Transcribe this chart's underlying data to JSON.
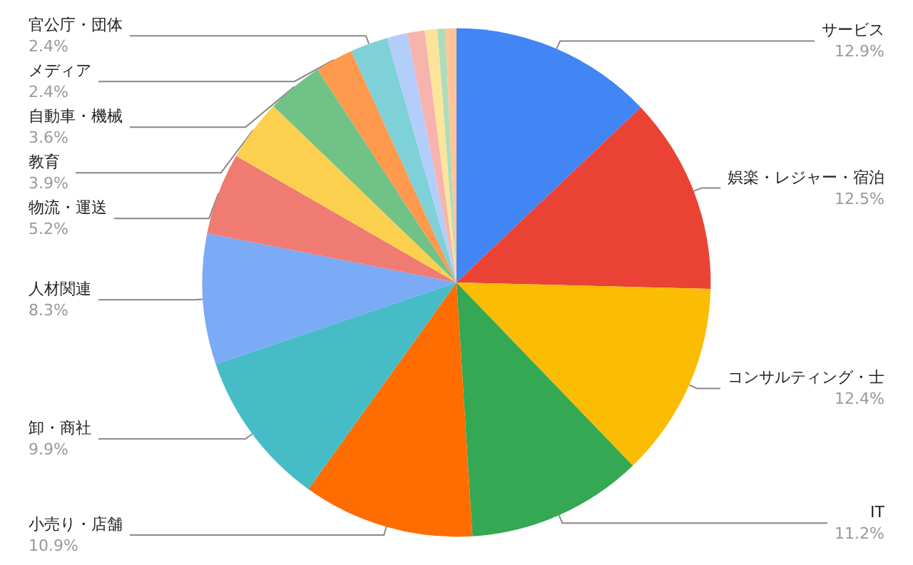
{
  "chart_data": {
    "type": "pie",
    "categories": [
      "サービス",
      "娯楽・レジャー・宿泊",
      "コンサルティング・士",
      "IT",
      "小売り・店舗",
      "卸・商社",
      "人材関連",
      "物流・運送",
      "教育",
      "自動車・機械",
      "メディア",
      "官公庁・団体",
      null,
      null,
      null,
      null,
      null
    ],
    "values": [
      12.9,
      12.5,
      12.4,
      11.2,
      10.9,
      9.9,
      8.3,
      5.2,
      3.9,
      3.6,
      2.4,
      2.4,
      1.3,
      1.1,
      0.8,
      0.5,
      0.7
    ],
    "value_labels": [
      "12.9%",
      "12.5%",
      "12.4%",
      "11.2%",
      "10.9%",
      "9.9%",
      "8.3%",
      "5.2%",
      "3.9%",
      "3.6%",
      "2.4%",
      "2.4%",
      null,
      null,
      null,
      null,
      null
    ],
    "colors": [
      "#4285f4",
      "#ea4335",
      "#fbbc04",
      "#34a853",
      "#ff6d01",
      "#46bdc6",
      "#7baaf7",
      "#f07b72",
      "#fcd04f",
      "#71c287",
      "#ff994d",
      "#7ed1d7",
      "#b3cefb",
      "#f7b4ae",
      "#fde49b",
      "#aedcba",
      "#ffc599"
    ],
    "legend": false
  }
}
